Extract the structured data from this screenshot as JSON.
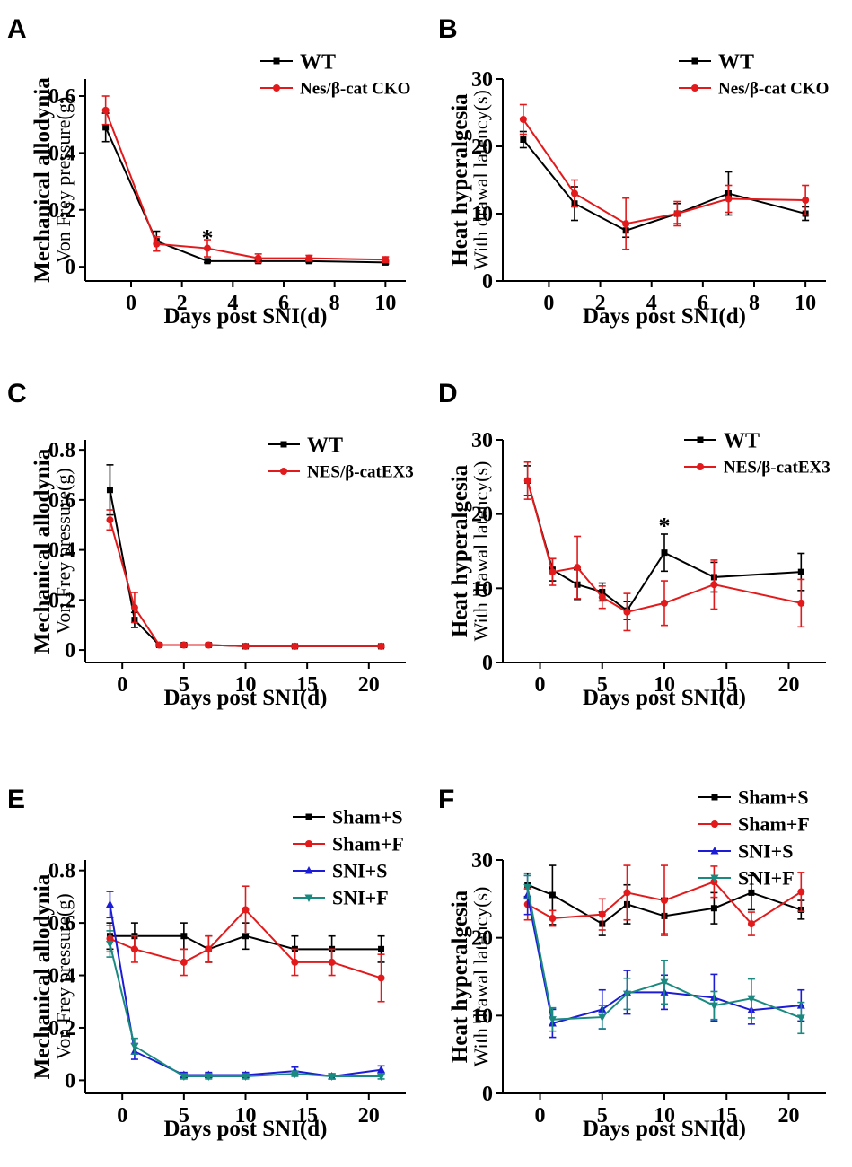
{
  "chart_data": [
    {
      "panel": "A",
      "type": "line",
      "ylabel_main": "Mechanical allodynia",
      "ylabel_sub": "Von Frey pressure(g)",
      "xlabel": "Days post SNI(d)",
      "xticks": [
        0,
        2,
        4,
        6,
        8,
        10
      ],
      "xtick_labels": [
        "0",
        "2",
        "4",
        "6",
        "8",
        "10"
      ],
      "yticks": [
        0,
        0.2,
        0.4,
        0.6
      ],
      "ytick_labels": [
        "0",
        "0.2",
        "0.4",
        "0.6"
      ],
      "xlim": [
        -1.8,
        10.8
      ],
      "ylim": [
        -0.05,
        0.66
      ],
      "legend": "top-right",
      "annotations": [
        {
          "text": "*",
          "x": 3,
          "y": 0.1
        }
      ],
      "series": [
        {
          "name": "WT",
          "color": "#000000",
          "x": [
            -1,
            1,
            3,
            5,
            7,
            10
          ],
          "y": [
            0.49,
            0.09,
            0.02,
            0.02,
            0.02,
            0.015
          ],
          "err": [
            0.05,
            0.035,
            0.005,
            0.005,
            0.005,
            0.005
          ]
        },
        {
          "name": "Nes/β-cat CKO",
          "color": "#e31a1c",
          "x": [
            -1,
            1,
            3,
            5,
            7,
            10
          ],
          "y": [
            0.55,
            0.08,
            0.065,
            0.03,
            0.03,
            0.025
          ],
          "err": [
            0.05,
            0.025,
            0.03,
            0.015,
            0.01,
            0.01
          ]
        }
      ]
    },
    {
      "panel": "B",
      "type": "line",
      "ylabel_main": "Heat hyperalgesia",
      "ylabel_sub": "With drawal latency(s)",
      "xlabel": "Days post SNI(d)",
      "xticks": [
        0,
        2,
        4,
        6,
        8,
        10
      ],
      "xtick_labels": [
        "0",
        "2",
        "4",
        "6",
        "8",
        "10"
      ],
      "yticks": [
        0,
        10,
        20,
        30
      ],
      "ytick_labels": [
        "0",
        "10",
        "20",
        "30"
      ],
      "xlim": [
        -1.8,
        10.8
      ],
      "ylim": [
        0,
        30
      ],
      "legend": "top-right",
      "annotations": [],
      "series": [
        {
          "name": "WT",
          "color": "#000000",
          "x": [
            -1,
            1,
            3,
            5,
            7,
            10
          ],
          "y": [
            21,
            11.5,
            7.5,
            10,
            13,
            10
          ],
          "err": [
            1.2,
            2.5,
            1.0,
            1.5,
            3.2,
            1.0
          ]
        },
        {
          "name": "Nes/β-cat CKO",
          "color": "#e31a1c",
          "x": [
            -1,
            1,
            3,
            5,
            7,
            10
          ],
          "y": [
            24,
            13,
            8.5,
            10,
            12.2,
            12
          ],
          "err": [
            2.2,
            2.0,
            3.8,
            1.8,
            2.0,
            2.2
          ]
        }
      ]
    },
    {
      "panel": "C",
      "type": "line",
      "ylabel_main": "Mechanical allodynia",
      "ylabel_sub": "Von Frey pressure(g)",
      "xlabel": "Days post SNI(d)",
      "xticks": [
        0,
        5,
        10,
        15,
        20
      ],
      "xtick_labels": [
        "0",
        "5",
        "10",
        "15",
        "20"
      ],
      "yticks": [
        0,
        0.2,
        0.4,
        0.6,
        0.8
      ],
      "ytick_labels": [
        "0",
        "0.2",
        "0.4",
        "0.6",
        "0.8"
      ],
      "xlim": [
        -3,
        23
      ],
      "ylim": [
        -0.05,
        0.84
      ],
      "legend": "top-right",
      "annotations": [],
      "series": [
        {
          "name": "WT",
          "color": "#000000",
          "x": [
            -1,
            1,
            3,
            5,
            7,
            10,
            14,
            21
          ],
          "y": [
            0.64,
            0.12,
            0.02,
            0.02,
            0.02,
            0.015,
            0.015,
            0.015
          ],
          "err": [
            0.1,
            0.03,
            0.005,
            0.005,
            0.005,
            0.005,
            0.005,
            0.005
          ]
        },
        {
          "name": "NES/β-catEX3",
          "color": "#e31a1c",
          "x": [
            -1,
            1,
            3,
            5,
            7,
            10,
            14,
            21
          ],
          "y": [
            0.52,
            0.17,
            0.02,
            0.02,
            0.02,
            0.015,
            0.015,
            0.015
          ],
          "err": [
            0.04,
            0.06,
            0.005,
            0.005,
            0.005,
            0.005,
            0.005,
            0.005
          ]
        }
      ]
    },
    {
      "panel": "D",
      "type": "line",
      "ylabel_main": "Heat hyperalgesia",
      "ylabel_sub": "With drawal latency(s)",
      "xlabel": "Days post SNI(d)",
      "xticks": [
        0,
        5,
        10,
        15,
        20
      ],
      "xtick_labels": [
        "0",
        "5",
        "10",
        "15",
        "20"
      ],
      "yticks": [
        0,
        10,
        20,
        30
      ],
      "ytick_labels": [
        "0",
        "10",
        "20",
        "30"
      ],
      "xlim": [
        -3,
        23
      ],
      "ylim": [
        0,
        30
      ],
      "legend": "top-right",
      "annotations": [
        {
          "text": "*",
          "x": 10,
          "y": 18.3
        }
      ],
      "series": [
        {
          "name": "WT",
          "color": "#000000",
          "x": [
            -1,
            1,
            3,
            5,
            7,
            10,
            14,
            21
          ],
          "y": [
            24.5,
            12.5,
            10.5,
            9.5,
            7,
            14.8,
            11.5,
            12.2
          ],
          "err": [
            2.0,
            1.5,
            2.0,
            1.2,
            1.2,
            2.5,
            2.0,
            2.5
          ]
        },
        {
          "name": "NES/β-catEX3",
          "color": "#e31a1c",
          "x": [
            -1,
            1,
            3,
            5,
            7,
            10,
            14,
            21
          ],
          "y": [
            24.5,
            12.2,
            12.8,
            8.8,
            6.8,
            8,
            10.5,
            8
          ],
          "err": [
            2.5,
            1.8,
            4.2,
            1.5,
            2.5,
            3.0,
            3.3,
            3.2
          ]
        }
      ]
    },
    {
      "panel": "E",
      "type": "line",
      "ylabel_main": "Mechanical allodynia",
      "ylabel_sub": "Von Frey pressure(g)",
      "xlabel": "Days post SNI(d)",
      "xticks": [
        0,
        5,
        10,
        15,
        20
      ],
      "xtick_labels": [
        "0",
        "5",
        "10",
        "15",
        "20"
      ],
      "yticks": [
        0,
        0.2,
        0.4,
        0.6,
        0.8
      ],
      "ytick_labels": [
        "0",
        "0.2",
        "0.4",
        "0.6",
        "0.8"
      ],
      "xlim": [
        -3,
        23
      ],
      "ylim": [
        -0.05,
        0.84
      ],
      "legend": "top-right",
      "annotations": [],
      "series": [
        {
          "name": "Sham+S",
          "color": "#000000",
          "x": [
            -1,
            1,
            5,
            7,
            10,
            14,
            17,
            21
          ],
          "y": [
            0.55,
            0.55,
            0.55,
            0.5,
            0.55,
            0.5,
            0.5,
            0.5
          ],
          "err": [
            0.05,
            0.05,
            0.05,
            0.05,
            0.05,
            0.05,
            0.05,
            0.05
          ]
        },
        {
          "name": "Sham+F",
          "color": "#e31a1c",
          "x": [
            -1,
            1,
            5,
            7,
            10,
            14,
            17,
            21
          ],
          "y": [
            0.54,
            0.5,
            0.45,
            0.5,
            0.65,
            0.45,
            0.45,
            0.39
          ],
          "err": [
            0.05,
            0.05,
            0.05,
            0.05,
            0.09,
            0.05,
            0.05,
            0.09
          ]
        },
        {
          "name": "SNI+S",
          "color": "#1c1cd6",
          "x": [
            -1,
            1,
            5,
            7,
            10,
            14,
            17,
            21
          ],
          "y": [
            0.67,
            0.11,
            0.02,
            0.02,
            0.02,
            0.035,
            0.015,
            0.04
          ],
          "err": [
            0.05,
            0.03,
            0.01,
            0.01,
            0.01,
            0.015,
            0.01,
            0.015
          ]
        },
        {
          "name": "SNI+F",
          "color": "#1a8a80",
          "x": [
            -1,
            1,
            5,
            7,
            10,
            14,
            17,
            21
          ],
          "y": [
            0.52,
            0.13,
            0.015,
            0.015,
            0.015,
            0.025,
            0.015,
            0.015
          ],
          "err": [
            0.05,
            0.03,
            0.01,
            0.01,
            0.01,
            0.01,
            0.01,
            0.01
          ]
        }
      ]
    },
    {
      "panel": "F",
      "type": "line",
      "ylabel_main": "Heat hyperalgesia",
      "ylabel_sub": "With drawal latency(s)",
      "xlabel": "Days post SNI(d)",
      "xticks": [
        0,
        5,
        10,
        15,
        20
      ],
      "xtick_labels": [
        "0",
        "5",
        "10",
        "15",
        "20"
      ],
      "yticks": [
        0,
        10,
        20,
        30
      ],
      "ytick_labels": [
        "0",
        "10",
        "20",
        "30"
      ],
      "xlim": [
        -3,
        23
      ],
      "ylim": [
        0,
        30
      ],
      "legend": "top-right",
      "annotations": [],
      "series": [
        {
          "name": "Sham+S",
          "color": "#000000",
          "x": [
            -1,
            1,
            5,
            7,
            10,
            14,
            17,
            21
          ],
          "y": [
            26.8,
            25.5,
            21.8,
            24.3,
            22.8,
            23.8,
            25.8,
            23.6
          ],
          "err": [
            1.5,
            3.8,
            1.5,
            2.5,
            2.3,
            2.0,
            2.2,
            1.2
          ]
        },
        {
          "name": "Sham+F",
          "color": "#e31a1c",
          "x": [
            -1,
            1,
            5,
            7,
            10,
            14,
            17,
            21
          ],
          "y": [
            24.3,
            22.5,
            23,
            25.8,
            24.8,
            27.2,
            21.8,
            25.9
          ],
          "err": [
            2.0,
            1.0,
            2.0,
            3.5,
            4.5,
            2.0,
            1.5,
            2.5
          ]
        },
        {
          "name": "SNI+S",
          "color": "#1c1cd6",
          "x": [
            -1,
            1,
            5,
            7,
            10,
            14,
            17,
            21
          ],
          "y": [
            25.5,
            9,
            10.8,
            13,
            13,
            12.3,
            10.7,
            11.3
          ],
          "err": [
            2.5,
            1.8,
            2.5,
            2.8,
            2.2,
            3.0,
            1.8,
            2.0
          ]
        },
        {
          "name": "SNI+F",
          "color": "#1a8a80",
          "x": [
            -1,
            1,
            5,
            7,
            10,
            14,
            17,
            21
          ],
          "y": [
            26.5,
            9.5,
            9.8,
            12.8,
            14.3,
            11.3,
            12.2,
            9.7
          ],
          "err": [
            1.5,
            1.5,
            1.5,
            2.0,
            2.8,
            1.8,
            2.5,
            2.0
          ]
        }
      ]
    }
  ]
}
